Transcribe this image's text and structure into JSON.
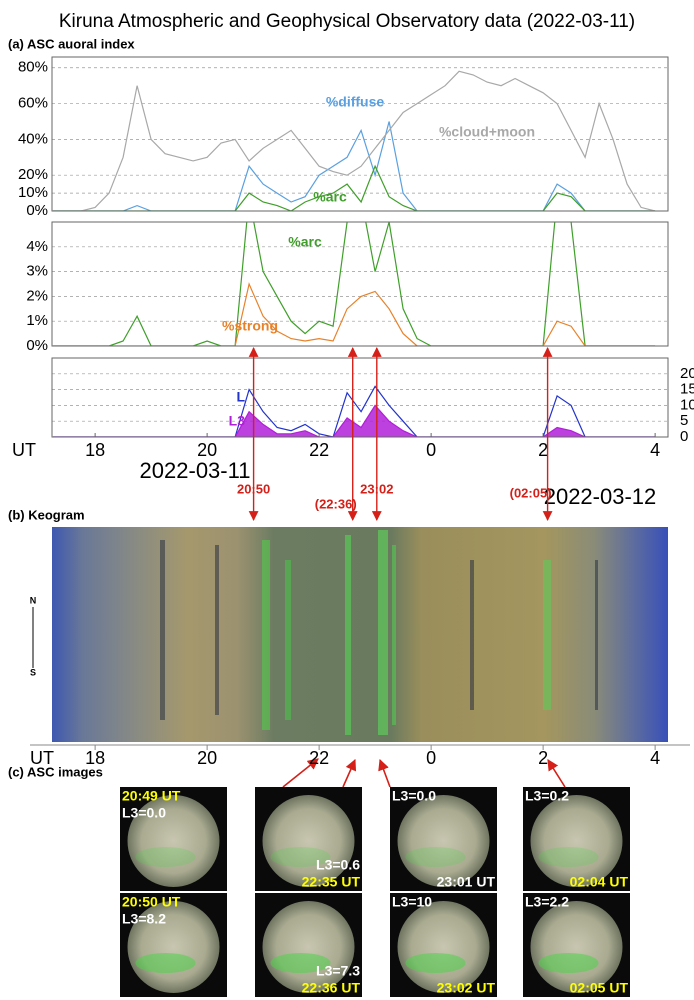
{
  "title": "Kiruna Atmospheric and Geophysical Observatory data (2022-03-11)",
  "chart_data": [
    {
      "type": "line",
      "title": "(a) ASC auoral index",
      "x": [
        17.25,
        17.5,
        17.75,
        18,
        18.25,
        18.5,
        18.75,
        19,
        19.25,
        19.5,
        19.75,
        20,
        20.25,
        20.5,
        20.75,
        21,
        21.25,
        21.5,
        21.75,
        22,
        22.25,
        22.5,
        22.75,
        23,
        23.25,
        23.5,
        23.75,
        24,
        24.25,
        24.5,
        24.75,
        25,
        25.25,
        25.5,
        25.75,
        26,
        26.25,
        26.5,
        26.75,
        27,
        27.25,
        27.5,
        27.75,
        28
      ],
      "xlim": [
        17.23,
        28.23
      ],
      "ylim": [
        0,
        86
      ],
      "yticks": [
        {
          "value": 0,
          "label": "0%"
        },
        {
          "value": 10,
          "label": "10%"
        },
        {
          "value": 20,
          "label": "20%"
        },
        {
          "value": 40,
          "label": "40%"
        },
        {
          "value": 60,
          "label": "60%"
        },
        {
          "value": 80,
          "label": "80%"
        }
      ],
      "grid": true,
      "series": [
        {
          "name": "%diffuse",
          "color": "#5aa0e0",
          "values": [
            0,
            0,
            0,
            0,
            0,
            0,
            3,
            0,
            0,
            0,
            0,
            0,
            0,
            0,
            25,
            15,
            10,
            5,
            8,
            20,
            25,
            30,
            45,
            20,
            50,
            10,
            0,
            0,
            0,
            0,
            0,
            0,
            0,
            0,
            0,
            0,
            15,
            10,
            0,
            0,
            0,
            0,
            0,
            0
          ]
        },
        {
          "name": "%arc",
          "color": "#3f9f2a",
          "values": [
            0,
            0,
            0,
            0,
            0,
            0,
            0,
            0,
            0,
            0,
            0,
            0,
            0,
            0,
            10,
            5,
            3,
            0,
            5,
            8,
            10,
            15,
            5,
            25,
            8,
            3,
            0,
            0,
            0,
            0,
            0,
            0,
            0,
            0,
            0,
            0,
            10,
            8,
            0,
            0,
            0,
            0,
            0,
            0
          ]
        },
        {
          "name": "%cloud+moon",
          "color": "#a8a8a8",
          "values": [
            0,
            0,
            0,
            2,
            10,
            30,
            70,
            40,
            32,
            30,
            28,
            30,
            38,
            40,
            28,
            35,
            40,
            45,
            35,
            25,
            22,
            20,
            25,
            35,
            45,
            55,
            60,
            65,
            70,
            78,
            76,
            72,
            70,
            74,
            70,
            66,
            60,
            45,
            30,
            60,
            40,
            15,
            2,
            0
          ]
        }
      ]
    },
    {
      "type": "line",
      "x": [
        17.25,
        17.5,
        17.75,
        18,
        18.25,
        18.5,
        18.75,
        19,
        19.25,
        19.5,
        19.75,
        20,
        20.25,
        20.5,
        20.75,
        21,
        21.25,
        21.5,
        21.75,
        22,
        22.25,
        22.5,
        22.75,
        23,
        23.25,
        23.5,
        23.75,
        24,
        24.25,
        24.5,
        24.75,
        25,
        25.25,
        25.5,
        25.75,
        26,
        26.25,
        26.5,
        26.75,
        27,
        27.25,
        27.5,
        27.75,
        28
      ],
      "xlim": [
        17.23,
        28.23
      ],
      "ylim": [
        0,
        5
      ],
      "yticks": [
        {
          "value": 0,
          "label": "0%"
        },
        {
          "value": 1,
          "label": "1%"
        },
        {
          "value": 2,
          "label": "2%"
        },
        {
          "value": 3,
          "label": "3%"
        },
        {
          "value": 4,
          "label": "4%"
        }
      ],
      "grid": true,
      "series": [
        {
          "name": "%arc",
          "color": "#3f9f2a",
          "values": [
            0,
            0,
            0,
            0,
            0,
            0.2,
            1.2,
            0,
            0,
            0,
            0,
            0.2,
            0,
            0,
            6,
            3,
            2,
            1,
            0.5,
            1,
            0.8,
            5,
            6,
            3,
            5,
            1.5,
            0.3,
            0,
            0,
            0,
            0,
            0,
            0,
            0,
            0,
            0,
            6,
            5,
            0,
            0,
            0,
            0,
            0,
            0
          ]
        },
        {
          "name": "%strong",
          "color": "#e8822a",
          "values": [
            0,
            0,
            0,
            0,
            0,
            0,
            0,
            0,
            0,
            0,
            0,
            0,
            0,
            0,
            2.5,
            1.2,
            0.6,
            0.3,
            0.2,
            0.3,
            0.2,
            1.5,
            2,
            2.2,
            1.5,
            0.5,
            0,
            0,
            0,
            0,
            0,
            0,
            0,
            0,
            0,
            0,
            1,
            0.8,
            0,
            0,
            0,
            0,
            0,
            0
          ]
        }
      ]
    },
    {
      "type": "line",
      "x": [
        17.25,
        17.5,
        17.75,
        18,
        18.25,
        18.5,
        18.75,
        19,
        19.25,
        19.5,
        19.75,
        20,
        20.25,
        20.5,
        20.75,
        21,
        21.25,
        21.5,
        21.75,
        22,
        22.25,
        22.5,
        22.75,
        23,
        23.25,
        23.5,
        23.75,
        24,
        24.25,
        24.5,
        24.75,
        25,
        25.25,
        25.5,
        25.75,
        26,
        26.25,
        26.5,
        26.75,
        27,
        27.25,
        27.5,
        27.75,
        28
      ],
      "xlim": [
        17.23,
        28.23
      ],
      "ylim": [
        0,
        25
      ],
      "yticks": [
        0,
        5,
        10,
        15,
        20
      ],
      "yaxis_side": "right",
      "grid": true,
      "xlabel": "UT",
      "xticks": [
        18,
        20,
        22,
        {
          "value": 24,
          "label": "0"
        },
        {
          "value": 26,
          "label": "2"
        },
        {
          "value": 28,
          "label": "4"
        }
      ],
      "dates": [
        "2022-03-11",
        "2022-03-12"
      ],
      "series": [
        {
          "name": "L",
          "color": "#2233cc",
          "values": [
            0,
            0,
            0,
            0,
            0,
            0,
            0,
            0,
            0,
            0,
            0,
            0,
            0,
            0,
            15,
            8,
            3,
            2,
            4,
            1,
            0,
            14,
            8,
            16,
            10,
            5,
            0,
            0,
            0,
            0,
            0,
            0,
            0,
            0,
            0,
            0,
            13,
            10,
            0,
            0,
            0,
            0,
            0,
            0
          ]
        },
        {
          "name": "L3",
          "color": "#b020d8",
          "fill": true,
          "values": [
            0,
            0,
            0,
            0,
            0,
            0,
            0,
            0,
            0,
            0,
            0,
            0,
            0,
            0,
            8,
            4,
            1,
            1,
            2,
            0,
            0,
            6,
            3,
            10,
            5,
            2,
            0,
            0,
            0,
            0,
            0,
            0,
            0,
            0,
            0,
            0,
            3,
            2,
            0,
            0,
            0,
            0,
            0,
            0
          ]
        }
      ]
    }
  ],
  "events": [
    {
      "x": 20.83,
      "label": "20:50"
    },
    {
      "x": 22.6,
      "label": "(22:36)"
    },
    {
      "x": 23.03,
      "label": "23:02"
    },
    {
      "x": 26.08,
      "label": "(02:05)"
    }
  ],
  "keogram": {
    "title": "(b) Keogram",
    "north": "N",
    "south": "S",
    "xlabel": "UT",
    "xlim": [
      17.23,
      28.23
    ],
    "xticks": [
      18,
      20,
      22,
      {
        "value": 24,
        "label": "0"
      },
      {
        "value": 26,
        "label": "2"
      },
      {
        "value": 28,
        "label": "4"
      }
    ]
  },
  "asc_images": {
    "title": "(c) ASC images",
    "images": [
      {
        "labels": [
          {
            "text": "20:49 UT",
            "color": "#ffff00",
            "pos": "top"
          },
          {
            "text": "L3=0.0",
            "color": "#ffffff",
            "pos": "top"
          }
        ]
      },
      {
        "labels": [
          {
            "text": "L3=0.6",
            "color": "#ffffff",
            "pos": "bottom"
          },
          {
            "text": "22:35 UT",
            "color": "#ffff00",
            "pos": "bottom"
          }
        ]
      },
      {
        "labels": [
          {
            "text": "L3=0.0",
            "color": "#ffffff",
            "pos": "top"
          },
          {
            "text": "23:01 UT",
            "color": "#ffffff",
            "pos": "bottom"
          }
        ]
      },
      {
        "labels": [
          {
            "text": "L3=0.2",
            "color": "#ffffff",
            "pos": "top"
          },
          {
            "text": "02:04 UT",
            "color": "#ffff00",
            "pos": "bottom"
          }
        ]
      },
      {
        "labels": [
          {
            "text": "20:50 UT",
            "color": "#ffff00",
            "pos": "top"
          },
          {
            "text": "L3=8.2",
            "color": "#ffffff",
            "pos": "top"
          }
        ]
      },
      {
        "labels": [
          {
            "text": "L3=7.3",
            "color": "#ffffff",
            "pos": "bottom"
          },
          {
            "text": "22:36 UT",
            "color": "#ffff00",
            "pos": "bottom"
          }
        ]
      },
      {
        "labels": [
          {
            "text": "L3=10",
            "color": "#ffffff",
            "pos": "top"
          },
          {
            "text": "23:02 UT",
            "color": "#ffff00",
            "pos": "bottom"
          }
        ]
      },
      {
        "labels": [
          {
            "text": "L3=2.2",
            "color": "#ffffff",
            "pos": "top"
          },
          {
            "text": "02:05 UT",
            "color": "#ffff00",
            "pos": "bottom"
          }
        ]
      }
    ]
  }
}
